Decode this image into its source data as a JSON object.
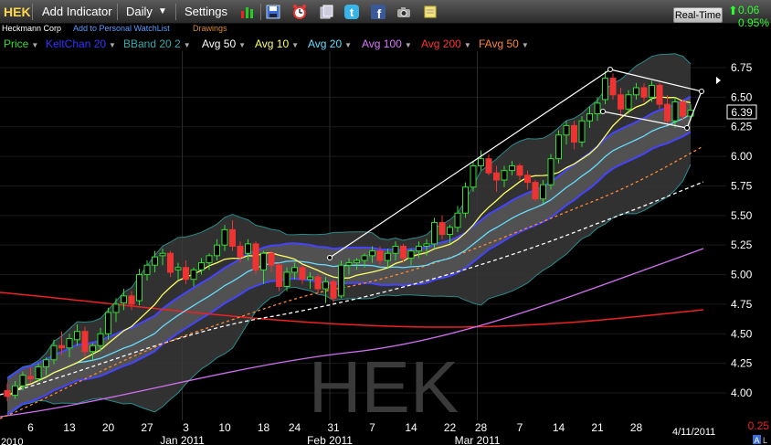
{
  "toolbar": {
    "symbol": "HEK",
    "add_indicator": "Add Indicator",
    "interval": "Daily",
    "settings": "Settings",
    "realtime": "Real-Time",
    "change": "0.06",
    "change_pct": "0.95%"
  },
  "info": {
    "company": "Heckmann Corp",
    "watchlist": "Add to Personal WatchList",
    "drawings": "Drawings"
  },
  "indicators": [
    {
      "label": "Price",
      "color": "#33dd33"
    },
    {
      "label": "KeltChan 20",
      "color": "#3333ff"
    },
    {
      "label": "BBand 20 2",
      "color": "#33aaaa"
    },
    {
      "label": "Avg 50",
      "color": "#ffffff"
    },
    {
      "label": "Avg 10",
      "color": "#ffff66"
    },
    {
      "label": "Avg 20",
      "color": "#66ddff"
    },
    {
      "label": "Avg 100",
      "color": "#dd77ff"
    },
    {
      "label": "Avg 200",
      "color": "#ff3333"
    },
    {
      "label": "FAvg 50",
      "color": "#ff8833"
    }
  ],
  "watermark": "HEK",
  "price_label": "6.39",
  "date_stamp": "4/11/2011",
  "left_bottom_label": "2010",
  "chart_data": {
    "type": "candlestick",
    "ylim": [
      3.9,
      6.85
    ],
    "y_ticks": [
      "6.75",
      "6.50",
      "6.25",
      "6.00",
      "5.75",
      "5.50",
      "5.25",
      "5.00",
      "4.75",
      "4.50",
      "4.25",
      "4.00"
    ],
    "y_tick_values": [
      6.75,
      6.5,
      6.25,
      6.0,
      5.75,
      5.5,
      5.25,
      5.0,
      4.75,
      4.5,
      4.25,
      4.0
    ],
    "corner_label": "0.25",
    "x_ticks": [
      "2010",
      "6",
      "13",
      "20",
      "27",
      "3",
      "10",
      "18",
      "24",
      "31",
      "7",
      "14",
      "22",
      "28",
      "7",
      "14",
      "21",
      "28"
    ],
    "x_tick_days": [
      0,
      3,
      8,
      13,
      18,
      23,
      28,
      33,
      37,
      42,
      47,
      52,
      57,
      61,
      66,
      71,
      76,
      81
    ],
    "month_labels": [
      "Jan 2011",
      "Feb 2011",
      "Mar 2011"
    ],
    "month_days": [
      23,
      42,
      61
    ],
    "last_price": 6.39,
    "candles": [
      [
        4.02,
        4.08,
        3.93,
        3.97
      ],
      [
        3.98,
        4.1,
        3.95,
        4.06
      ],
      [
        4.06,
        4.18,
        4.02,
        4.15
      ],
      [
        4.14,
        4.22,
        4.08,
        4.12
      ],
      [
        4.12,
        4.25,
        4.1,
        4.22
      ],
      [
        4.22,
        4.3,
        4.15,
        4.28
      ],
      [
        4.28,
        4.45,
        4.24,
        4.4
      ],
      [
        4.4,
        4.52,
        4.32,
        4.38
      ],
      [
        4.38,
        4.5,
        4.3,
        4.46
      ],
      [
        4.45,
        4.58,
        4.4,
        4.52
      ],
      [
        4.52,
        4.56,
        4.3,
        4.35
      ],
      [
        4.35,
        4.42,
        4.28,
        4.4
      ],
      [
        4.4,
        4.55,
        4.35,
        4.5
      ],
      [
        4.5,
        4.72,
        4.45,
        4.68
      ],
      [
        4.68,
        4.8,
        4.6,
        4.75
      ],
      [
        4.76,
        4.88,
        4.7,
        4.82
      ],
      [
        4.82,
        4.86,
        4.7,
        4.75
      ],
      [
        4.78,
        5.05,
        4.74,
        5.0
      ],
      [
        5.0,
        5.12,
        4.95,
        5.08
      ],
      [
        5.08,
        5.2,
        5.02,
        5.15
      ],
      [
        5.16,
        5.22,
        5.08,
        5.18
      ],
      [
        5.18,
        5.2,
        4.98,
        5.02
      ],
      [
        5.04,
        5.1,
        4.96,
        5.06
      ],
      [
        5.06,
        5.12,
        4.92,
        4.96
      ],
      [
        4.96,
        5.06,
        4.9,
        5.04
      ],
      [
        5.04,
        5.14,
        5.0,
        5.1
      ],
      [
        5.1,
        5.18,
        5.04,
        5.16
      ],
      [
        5.16,
        5.3,
        5.12,
        5.25
      ],
      [
        5.25,
        5.42,
        5.2,
        5.38
      ],
      [
        5.38,
        5.46,
        5.2,
        5.24
      ],
      [
        5.24,
        5.28,
        5.1,
        5.15
      ],
      [
        5.18,
        5.3,
        5.12,
        5.26
      ],
      [
        5.26,
        5.28,
        5.0,
        5.04
      ],
      [
        5.04,
        5.2,
        4.92,
        5.18
      ],
      [
        5.18,
        5.2,
        5.02,
        5.08
      ],
      [
        5.08,
        5.1,
        4.86,
        4.9
      ],
      [
        4.9,
        5.06,
        4.86,
        5.02
      ],
      [
        5.02,
        5.1,
        4.96,
        5.06
      ],
      [
        5.06,
        5.08,
        4.92,
        4.96
      ],
      [
        4.96,
        5.02,
        4.88,
        4.98
      ],
      [
        4.98,
        5.0,
        4.84,
        4.88
      ],
      [
        4.88,
        4.98,
        4.76,
        4.94
      ],
      [
        4.94,
        4.96,
        4.76,
        4.8
      ],
      [
        4.82,
        5.12,
        4.8,
        5.08
      ],
      [
        5.08,
        5.14,
        5.0,
        5.1
      ],
      [
        5.1,
        5.14,
        5.04,
        5.12
      ],
      [
        5.12,
        5.18,
        5.06,
        5.16
      ],
      [
        5.16,
        5.24,
        5.1,
        5.2
      ],
      [
        5.2,
        5.24,
        5.08,
        5.12
      ],
      [
        5.12,
        5.22,
        5.06,
        5.18
      ],
      [
        5.18,
        5.28,
        5.12,
        5.24
      ],
      [
        5.24,
        5.26,
        5.1,
        5.14
      ],
      [
        5.14,
        5.22,
        5.08,
        5.2
      ],
      [
        5.2,
        5.28,
        5.14,
        5.24
      ],
      [
        5.24,
        5.3,
        5.16,
        5.26
      ],
      [
        5.26,
        5.48,
        5.22,
        5.44
      ],
      [
        5.44,
        5.5,
        5.3,
        5.34
      ],
      [
        5.34,
        5.42,
        5.26,
        5.4
      ],
      [
        5.4,
        5.58,
        5.36,
        5.52
      ],
      [
        5.52,
        5.78,
        5.48,
        5.74
      ],
      [
        5.74,
        5.96,
        5.7,
        5.92
      ],
      [
        5.92,
        6.05,
        5.88,
        5.98
      ],
      [
        5.98,
        6.02,
        5.84,
        5.86
      ],
      [
        5.86,
        5.92,
        5.7,
        5.8
      ],
      [
        5.8,
        5.92,
        5.74,
        5.88
      ],
      [
        5.88,
        5.96,
        5.84,
        5.92
      ],
      [
        5.92,
        5.94,
        5.8,
        5.84
      ],
      [
        5.84,
        5.88,
        5.72,
        5.78
      ],
      [
        5.78,
        5.8,
        5.62,
        5.64
      ],
      [
        5.64,
        5.8,
        5.6,
        5.76
      ],
      [
        5.76,
        6.02,
        5.72,
        5.98
      ],
      [
        5.98,
        6.22,
        5.94,
        6.18
      ],
      [
        6.18,
        6.3,
        6.1,
        6.26
      ],
      [
        6.26,
        6.3,
        6.06,
        6.12
      ],
      [
        6.12,
        6.34,
        6.08,
        6.3
      ],
      [
        6.3,
        6.42,
        6.24,
        6.36
      ],
      [
        6.36,
        6.5,
        6.3,
        6.45
      ],
      [
        6.48,
        6.72,
        6.44,
        6.66
      ],
      [
        6.66,
        6.7,
        6.48,
        6.52
      ],
      [
        6.52,
        6.58,
        6.34,
        6.4
      ],
      [
        6.4,
        6.56,
        6.36,
        6.52
      ],
      [
        6.52,
        6.62,
        6.48,
        6.58
      ],
      [
        6.58,
        6.62,
        6.46,
        6.5
      ],
      [
        6.5,
        6.64,
        6.46,
        6.6
      ],
      [
        6.6,
        6.62,
        6.4,
        6.44
      ],
      [
        6.44,
        6.52,
        6.28,
        6.3
      ],
      [
        6.3,
        6.5,
        6.24,
        6.46
      ],
      [
        6.46,
        6.48,
        6.3,
        6.34
      ],
      [
        6.34,
        6.44,
        6.3,
        6.39
      ]
    ]
  }
}
